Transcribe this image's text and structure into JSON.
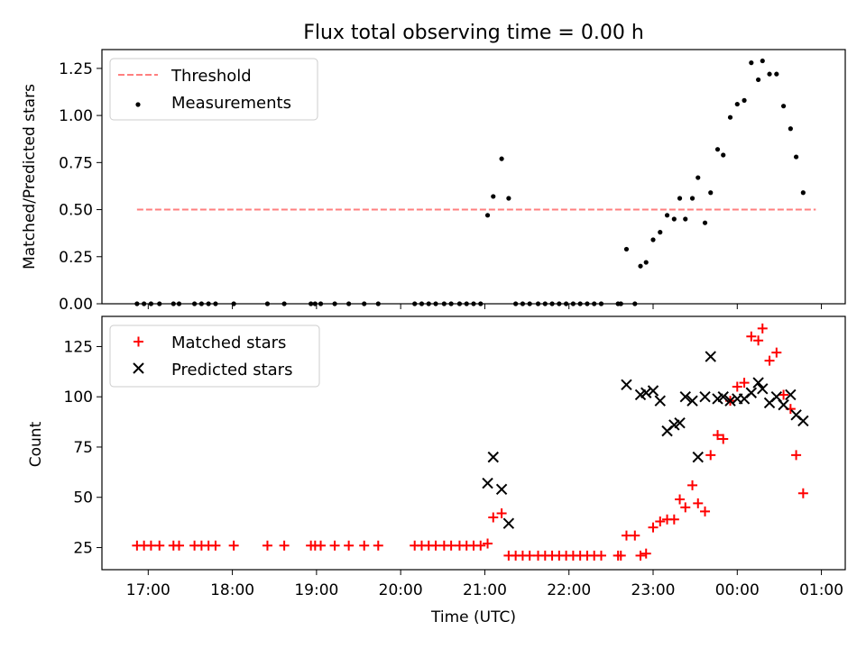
{
  "chart_data": [
    {
      "type": "scatter",
      "title": "Flux total observing time = 0.00 h",
      "xlabel": "",
      "ylabel": "Matched/Predicted stars",
      "xlim": [
        "16:27",
        "01:17"
      ],
      "ylim": [
        0,
        1.35
      ],
      "x_ticks": [
        "17:00",
        "18:00",
        "19:00",
        "20:00",
        "21:00",
        "22:00",
        "23:00",
        "00:00",
        "01:00"
      ],
      "y_ticks": [
        "0.00",
        "0.25",
        "0.50",
        "0.75",
        "1.00",
        "1.25"
      ],
      "legend": {
        "placement": "upper-left",
        "entries": [
          "Threshold",
          "Measurements"
        ]
      },
      "series": [
        {
          "name": "Threshold",
          "style": "dashed-line",
          "color": "#ff7f7f",
          "points": [
            [
              "16:52",
              0.5
            ],
            [
              "00:56",
              0.5
            ]
          ]
        },
        {
          "name": "Measurements",
          "style": "dot",
          "color": "#000000",
          "points": [
            [
              "16:52",
              0
            ],
            [
              "16:57",
              0
            ],
            [
              "17:02",
              0
            ],
            [
              "17:08",
              0
            ],
            [
              "17:18",
              0
            ],
            [
              "17:22",
              0
            ],
            [
              "17:33",
              0
            ],
            [
              "17:38",
              0
            ],
            [
              "17:43",
              0
            ],
            [
              "17:48",
              0
            ],
            [
              "18:01",
              0
            ],
            [
              "18:25",
              0
            ],
            [
              "18:37",
              0
            ],
            [
              "18:56",
              0
            ],
            [
              "18:59",
              0
            ],
            [
              "19:03",
              0
            ],
            [
              "19:13",
              0
            ],
            [
              "19:23",
              0
            ],
            [
              "19:34",
              0
            ],
            [
              "19:44",
              0
            ],
            [
              "20:10",
              0
            ],
            [
              "20:15",
              0
            ],
            [
              "20:20",
              0
            ],
            [
              "20:25",
              0
            ],
            [
              "20:31",
              0
            ],
            [
              "20:36",
              0
            ],
            [
              "20:42",
              0
            ],
            [
              "20:47",
              0
            ],
            [
              "20:52",
              0
            ],
            [
              "20:57",
              0
            ],
            [
              "21:02",
              0.47
            ],
            [
              "21:06",
              0.57
            ],
            [
              "21:12",
              0.77
            ],
            [
              "21:17",
              0.56
            ],
            [
              "21:22",
              0
            ],
            [
              "21:27",
              0
            ],
            [
              "21:32",
              0
            ],
            [
              "21:38",
              0
            ],
            [
              "21:43",
              0
            ],
            [
              "21:48",
              0
            ],
            [
              "21:53",
              0
            ],
            [
              "21:58",
              0
            ],
            [
              "22:03",
              0
            ],
            [
              "22:08",
              0
            ],
            [
              "22:13",
              0
            ],
            [
              "22:18",
              0
            ],
            [
              "22:23",
              0
            ],
            [
              "22:35",
              0
            ],
            [
              "22:37",
              0
            ],
            [
              "22:41",
              0.29
            ],
            [
              "22:47",
              0
            ],
            [
              "22:51",
              0.2
            ],
            [
              "22:55",
              0.22
            ],
            [
              "23:00",
              0.34
            ],
            [
              "23:05",
              0.38
            ],
            [
              "23:10",
              0.47
            ],
            [
              "23:15",
              0.45
            ],
            [
              "23:19",
              0.56
            ],
            [
              "23:23",
              0.45
            ],
            [
              "23:28",
              0.56
            ],
            [
              "23:32",
              0.67
            ],
            [
              "23:37",
              0.43
            ],
            [
              "23:41",
              0.59
            ],
            [
              "23:46",
              0.82
            ],
            [
              "23:50",
              0.79
            ],
            [
              "23:55",
              0.99
            ],
            [
              "00:00",
              1.06
            ],
            [
              "00:05",
              1.08
            ],
            [
              "00:10",
              1.28
            ],
            [
              "00:15",
              1.19
            ],
            [
              "00:18",
              1.29
            ],
            [
              "00:23",
              1.22
            ],
            [
              "00:28",
              1.22
            ],
            [
              "00:33",
              1.05
            ],
            [
              "00:38",
              0.93
            ],
            [
              "00:42",
              0.78
            ],
            [
              "00:47",
              0.59
            ]
          ]
        }
      ]
    },
    {
      "type": "scatter",
      "title": "",
      "xlabel": "Time (UTC)",
      "ylabel": "Count",
      "xlim": [
        "16:27",
        "01:17"
      ],
      "ylim": [
        14,
        140
      ],
      "x_ticks": [
        "17:00",
        "18:00",
        "19:00",
        "20:00",
        "21:00",
        "22:00",
        "23:00",
        "00:00",
        "01:00"
      ],
      "y_ticks": [
        "25",
        "50",
        "75",
        "100",
        "125"
      ],
      "legend": {
        "placement": "upper-left",
        "entries": [
          "Matched stars",
          "Predicted stars"
        ]
      },
      "series": [
        {
          "name": "Matched stars",
          "marker": "plus",
          "color": "#ff0000",
          "points": [
            [
              "16:52",
              26
            ],
            [
              "16:57",
              26
            ],
            [
              "17:02",
              26
            ],
            [
              "17:08",
              26
            ],
            [
              "17:18",
              26
            ],
            [
              "17:22",
              26
            ],
            [
              "17:33",
              26
            ],
            [
              "17:38",
              26
            ],
            [
              "17:43",
              26
            ],
            [
              "17:48",
              26
            ],
            [
              "18:01",
              26
            ],
            [
              "18:25",
              26
            ],
            [
              "18:37",
              26
            ],
            [
              "18:56",
              26
            ],
            [
              "18:59",
              26
            ],
            [
              "19:03",
              26
            ],
            [
              "19:13",
              26
            ],
            [
              "19:23",
              26
            ],
            [
              "19:34",
              26
            ],
            [
              "19:44",
              26
            ],
            [
              "20:10",
              26
            ],
            [
              "20:15",
              26
            ],
            [
              "20:20",
              26
            ],
            [
              "20:25",
              26
            ],
            [
              "20:31",
              26
            ],
            [
              "20:36",
              26
            ],
            [
              "20:42",
              26
            ],
            [
              "20:47",
              26
            ],
            [
              "20:52",
              26
            ],
            [
              "20:57",
              26
            ],
            [
              "21:02",
              27
            ],
            [
              "21:06",
              40
            ],
            [
              "21:12",
              42
            ],
            [
              "21:17",
              21
            ],
            [
              "21:22",
              21
            ],
            [
              "21:27",
              21
            ],
            [
              "21:32",
              21
            ],
            [
              "21:38",
              21
            ],
            [
              "21:43",
              21
            ],
            [
              "21:48",
              21
            ],
            [
              "21:53",
              21
            ],
            [
              "21:58",
              21
            ],
            [
              "22:03",
              21
            ],
            [
              "22:08",
              21
            ],
            [
              "22:13",
              21
            ],
            [
              "22:18",
              21
            ],
            [
              "22:23",
              21
            ],
            [
              "22:35",
              21
            ],
            [
              "22:37",
              21
            ],
            [
              "22:41",
              31
            ],
            [
              "22:47",
              31
            ],
            [
              "22:51",
              21
            ],
            [
              "22:55",
              22
            ],
            [
              "23:00",
              35
            ],
            [
              "23:05",
              38
            ],
            [
              "23:10",
              39
            ],
            [
              "23:15",
              39
            ],
            [
              "23:19",
              49
            ],
            [
              "23:23",
              45
            ],
            [
              "23:28",
              56
            ],
            [
              "23:32",
              47
            ],
            [
              "23:37",
              43
            ],
            [
              "23:41",
              71
            ],
            [
              "23:46",
              81
            ],
            [
              "23:50",
              79
            ],
            [
              "23:55",
              98
            ],
            [
              "00:00",
              105
            ],
            [
              "00:05",
              107
            ],
            [
              "00:10",
              130
            ],
            [
              "00:15",
              128
            ],
            [
              "00:18",
              134
            ],
            [
              "00:23",
              118
            ],
            [
              "00:28",
              122
            ],
            [
              "00:33",
              101
            ],
            [
              "00:38",
              94
            ],
            [
              "00:42",
              71
            ],
            [
              "00:47",
              52
            ]
          ]
        },
        {
          "name": "Predicted stars",
          "marker": "x",
          "color": "#000000",
          "points": [
            [
              "21:02",
              57
            ],
            [
              "21:06",
              70
            ],
            [
              "21:12",
              54
            ],
            [
              "21:17",
              37
            ],
            [
              "22:41",
              106
            ],
            [
              "22:51",
              101
            ],
            [
              "22:55",
              102
            ],
            [
              "23:00",
              103
            ],
            [
              "23:05",
              98
            ],
            [
              "23:10",
              83
            ],
            [
              "23:15",
              86
            ],
            [
              "23:19",
              87
            ],
            [
              "23:23",
              100
            ],
            [
              "23:28",
              98
            ],
            [
              "23:32",
              70
            ],
            [
              "23:37",
              100
            ],
            [
              "23:41",
              120
            ],
            [
              "23:46",
              99
            ],
            [
              "23:50",
              100
            ],
            [
              "23:55",
              98
            ],
            [
              "00:00",
              99
            ],
            [
              "00:05",
              99
            ],
            [
              "00:10",
              102
            ],
            [
              "00:15",
              107
            ],
            [
              "00:18",
              104
            ],
            [
              "00:23",
              97
            ],
            [
              "00:28",
              100
            ],
            [
              "00:33",
              96
            ],
            [
              "00:38",
              101
            ],
            [
              "00:42",
              91
            ],
            [
              "00:47",
              88
            ]
          ]
        }
      ]
    }
  ]
}
